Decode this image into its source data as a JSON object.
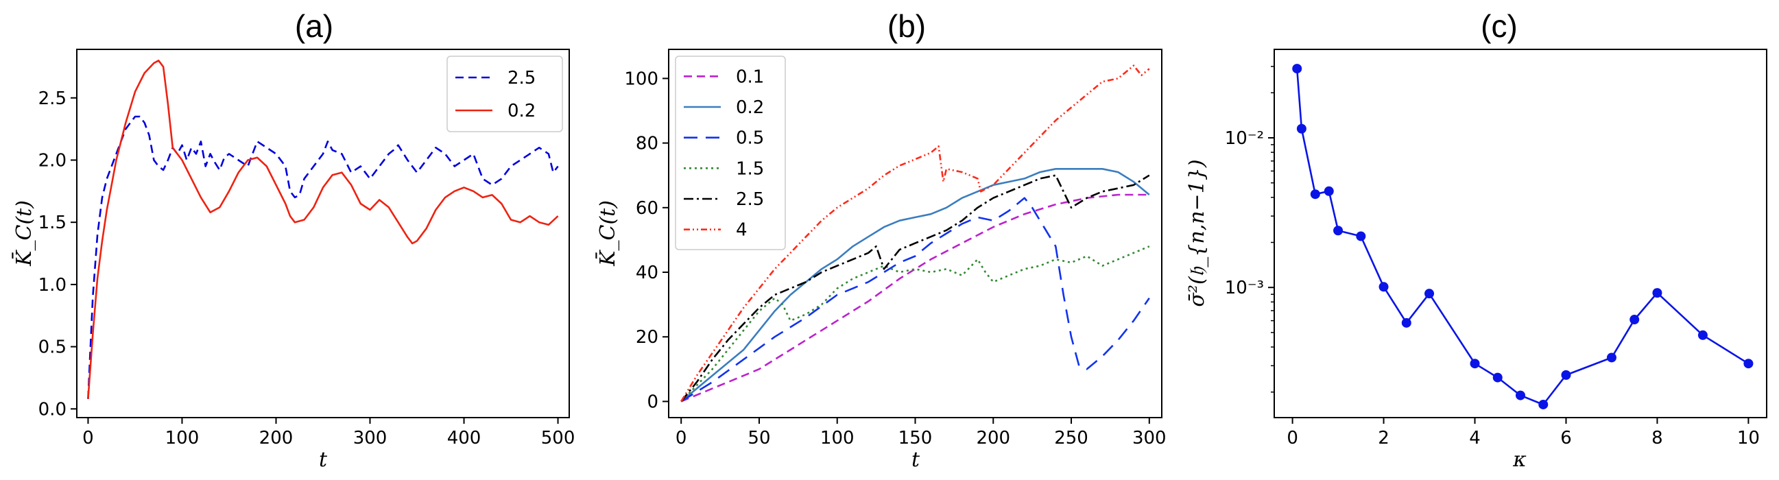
{
  "chart_data": [
    {
      "id": "a",
      "type": "line",
      "title": "(a)",
      "xlabel": "t",
      "ylabel": "K̄_C(t)",
      "xlim": [
        -12,
        512
      ],
      "ylim": [
        -0.07,
        2.89
      ],
      "yscale": "linear",
      "xticks": [
        0,
        100,
        200,
        300,
        400,
        500
      ],
      "yticks": [
        0.0,
        0.5,
        1.0,
        1.5,
        2.0,
        2.5
      ],
      "ytick_labels": [
        "0.0",
        "0.5",
        "1.0",
        "1.5",
        "2.0",
        "2.5"
      ],
      "legend_position": "top-right",
      "series": [
        {
          "name": "2.5",
          "color": "#0000dd",
          "style": "dashed",
          "x": [
            0,
            5,
            10,
            15,
            20,
            25,
            30,
            35,
            40,
            45,
            50,
            55,
            60,
            65,
            70,
            75,
            80,
            85,
            90,
            95,
            100,
            105,
            110,
            115,
            120,
            125,
            130,
            135,
            140,
            145,
            150,
            160,
            170,
            175,
            180,
            190,
            200,
            210,
            215,
            220,
            225,
            230,
            240,
            250,
            255,
            260,
            270,
            280,
            290,
            300,
            310,
            320,
            325,
            330,
            340,
            350,
            360,
            370,
            380,
            390,
            400,
            410,
            420,
            430,
            440,
            450,
            460,
            470,
            480,
            490,
            495,
            500
          ],
          "y": [
            0.08,
            0.9,
            1.4,
            1.7,
            1.85,
            1.95,
            2.05,
            2.15,
            2.25,
            2.3,
            2.35,
            2.35,
            2.3,
            2.2,
            2.0,
            1.95,
            1.92,
            2.0,
            2.1,
            2.05,
            2.12,
            2.0,
            2.1,
            2.05,
            2.15,
            1.95,
            2.05,
            1.98,
            1.92,
            2.02,
            2.05,
            2.0,
            1.95,
            2.05,
            2.15,
            2.1,
            2.05,
            1.95,
            1.75,
            1.7,
            1.72,
            1.85,
            1.95,
            2.05,
            2.15,
            2.08,
            2.05,
            1.9,
            1.95,
            1.85,
            1.95,
            2.05,
            2.08,
            2.12,
            2.0,
            1.9,
            2.0,
            2.1,
            2.05,
            1.95,
            2.0,
            2.05,
            1.85,
            1.8,
            1.85,
            1.95,
            2.0,
            2.05,
            2.1,
            2.05,
            1.9,
            1.95
          ]
        },
        {
          "name": "0.2",
          "color": "#ee2211",
          "style": "solid",
          "x": [
            0,
            5,
            10,
            15,
            20,
            25,
            30,
            40,
            50,
            60,
            70,
            75,
            80,
            85,
            90,
            95,
            100,
            110,
            120,
            130,
            140,
            150,
            160,
            170,
            180,
            190,
            200,
            210,
            215,
            220,
            230,
            240,
            250,
            260,
            270,
            280,
            290,
            300,
            310,
            320,
            330,
            340,
            345,
            350,
            360,
            370,
            380,
            390,
            400,
            410,
            420,
            430,
            440,
            450,
            460,
            470,
            480,
            490,
            500
          ],
          "y": [
            0.08,
            0.6,
            1.05,
            1.35,
            1.6,
            1.8,
            2.0,
            2.3,
            2.55,
            2.7,
            2.78,
            2.8,
            2.75,
            2.45,
            2.1,
            2.05,
            2.0,
            1.85,
            1.7,
            1.58,
            1.62,
            1.75,
            1.9,
            2.0,
            2.02,
            1.95,
            1.8,
            1.65,
            1.55,
            1.5,
            1.52,
            1.62,
            1.78,
            1.88,
            1.9,
            1.8,
            1.65,
            1.6,
            1.68,
            1.62,
            1.5,
            1.38,
            1.33,
            1.35,
            1.45,
            1.6,
            1.7,
            1.75,
            1.78,
            1.75,
            1.7,
            1.72,
            1.65,
            1.52,
            1.5,
            1.55,
            1.5,
            1.48,
            1.55
          ]
        }
      ]
    },
    {
      "id": "b",
      "type": "line",
      "title": "(b)",
      "xlabel": "t",
      "ylabel": "K̄_C(t)",
      "xlim": [
        -8,
        308
      ],
      "ylim": [
        -5,
        109
      ],
      "yscale": "linear",
      "xticks": [
        0,
        50,
        100,
        150,
        200,
        250,
        300
      ],
      "yticks": [
        0,
        20,
        40,
        60,
        80,
        100
      ],
      "ytick_labels": [
        "0",
        "20",
        "40",
        "60",
        "80",
        "100"
      ],
      "legend_position": "top-left",
      "series": [
        {
          "name": "0.1",
          "color": "#bb22cc",
          "style": "dashed",
          "x": [
            0,
            10,
            20,
            30,
            40,
            50,
            60,
            70,
            80,
            90,
            100,
            120,
            140,
            160,
            180,
            200,
            220,
            240,
            260,
            280,
            300
          ],
          "y": [
            0,
            2,
            4,
            6,
            8,
            10,
            13,
            16,
            19,
            22,
            25,
            31,
            38,
            44,
            49,
            54,
            58,
            61,
            63,
            64,
            64
          ]
        },
        {
          "name": "0.2",
          "color": "#3a7dbf",
          "style": "solid",
          "x": [
            0,
            10,
            20,
            30,
            40,
            50,
            60,
            70,
            80,
            90,
            100,
            110,
            120,
            130,
            140,
            150,
            160,
            170,
            180,
            190,
            200,
            210,
            220,
            230,
            240,
            250,
            260,
            270,
            280,
            290,
            300
          ],
          "y": [
            0,
            4,
            8,
            12,
            16,
            22,
            28,
            33,
            37,
            41,
            44,
            48,
            51,
            54,
            56,
            57,
            58,
            60,
            63,
            65,
            67,
            68,
            69,
            71,
            72,
            72,
            72,
            72,
            71,
            68,
            64
          ]
        },
        {
          "name": "0.5",
          "color": "#1133ee",
          "style": "dashed-long",
          "x": [
            0,
            20,
            40,
            60,
            80,
            100,
            120,
            130,
            140,
            150,
            160,
            170,
            180,
            190,
            200,
            210,
            220,
            225,
            230,
            240,
            245,
            250,
            255,
            260,
            270,
            280,
            290,
            300
          ],
          "y": [
            0,
            6,
            13,
            20,
            26,
            33,
            37,
            40,
            43,
            45,
            49,
            52,
            55,
            57,
            56,
            59,
            63,
            60,
            56,
            48,
            33,
            20,
            11,
            10,
            14,
            19,
            25,
            32
          ]
        },
        {
          "name": "1.5",
          "color": "#338833",
          "style": "dotted",
          "x": [
            0,
            10,
            20,
            30,
            40,
            50,
            60,
            65,
            70,
            80,
            90,
            100,
            110,
            120,
            130,
            140,
            150,
            160,
            170,
            180,
            190,
            195,
            200,
            210,
            220,
            230,
            240,
            250,
            260,
            270,
            280,
            290,
            300
          ],
          "y": [
            0,
            5,
            10,
            16,
            22,
            28,
            32,
            30,
            25,
            27,
            30,
            35,
            38,
            40,
            42,
            40,
            41,
            40,
            41,
            39,
            44,
            40,
            37,
            39,
            41,
            42,
            44,
            43,
            45,
            42,
            44,
            46,
            48
          ]
        },
        {
          "name": "2.5",
          "color": "#000000",
          "style": "dashdot",
          "x": [
            0,
            10,
            20,
            30,
            40,
            50,
            60,
            70,
            80,
            90,
            100,
            110,
            120,
            125,
            130,
            140,
            150,
            160,
            170,
            180,
            190,
            200,
            210,
            220,
            230,
            240,
            250,
            260,
            270,
            280,
            290,
            300
          ],
          "y": [
            0,
            6,
            13,
            19,
            24,
            29,
            33,
            35,
            37,
            40,
            42,
            44,
            46,
            48,
            41,
            47,
            49,
            51,
            53,
            56,
            60,
            63,
            65,
            67,
            69,
            70,
            60,
            63,
            65,
            66,
            67,
            70
          ]
        },
        {
          "name": "4",
          "color": "#ff2a1a",
          "style": "dashdotdot",
          "x": [
            0,
            10,
            20,
            30,
            40,
            50,
            60,
            70,
            80,
            90,
            100,
            110,
            120,
            130,
            140,
            150,
            160,
            165,
            168,
            170,
            180,
            190,
            192,
            200,
            210,
            220,
            230,
            240,
            250,
            260,
            270,
            280,
            290,
            295,
            300
          ],
          "y": [
            0,
            8,
            15,
            22,
            29,
            35,
            41,
            46,
            51,
            56,
            60,
            63,
            66,
            70,
            73,
            75,
            77,
            79,
            68,
            72,
            71,
            69,
            65,
            67,
            72,
            77,
            82,
            87,
            91,
            95,
            99,
            100,
            104,
            101,
            103
          ]
        }
      ]
    },
    {
      "id": "c",
      "type": "line",
      "title": "(c)",
      "xlabel": "κ",
      "ylabel": "σ̄²(𝔥_{n,n−1})",
      "xlim": [
        -0.4,
        10.4
      ],
      "ylim": [
        0.000135,
        0.039
      ],
      "yscale": "log",
      "xticks": [
        0,
        2,
        4,
        6,
        8,
        10
      ],
      "yticks": [
        0.001,
        0.01
      ],
      "ytick_labels": [
        "10⁻³",
        "10⁻²"
      ],
      "legend_position": "none",
      "series": [
        {
          "name": "",
          "color": "#0a14e6",
          "style": "solid-markers",
          "x": [
            0.1,
            0.2,
            0.5,
            0.8,
            1.0,
            1.5,
            2.0,
            2.5,
            3.0,
            4.0,
            4.5,
            5.0,
            5.5,
            6.0,
            7.0,
            7.5,
            8.0,
            9.0,
            10.0
          ],
          "y": [
            0.029,
            0.0115,
            0.0042,
            0.0044,
            0.0024,
            0.0022,
            0.00101,
            0.00058,
            0.00091,
            0.00031,
            0.00025,
            0.00019,
            0.000165,
            0.00026,
            0.00034,
            0.00061,
            0.00092,
            0.00048,
            0.00031
          ]
        }
      ]
    }
  ]
}
